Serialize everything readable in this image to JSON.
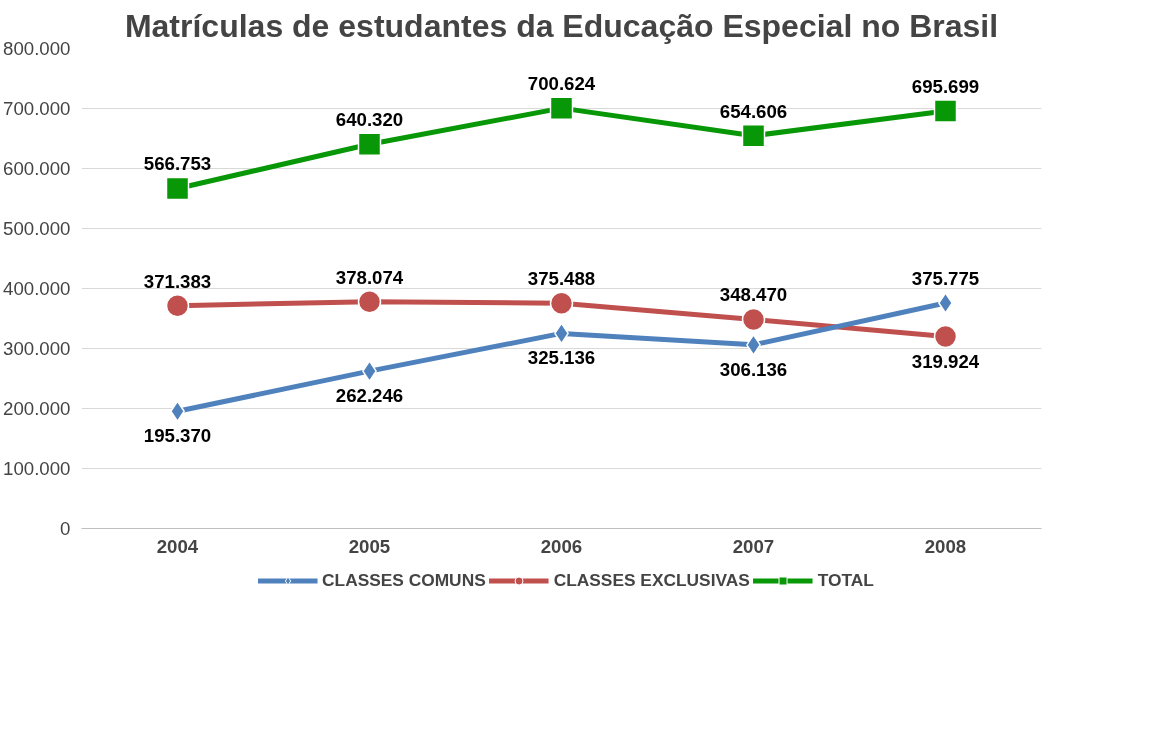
{
  "chart_data": {
    "type": "line",
    "title": "Matrículas de estudantes da Educação Especial no Brasil",
    "categories": [
      "2004",
      "2005",
      "2006",
      "2007",
      "2008"
    ],
    "series": [
      {
        "name": "CLASSES COMUNS",
        "color": "#4f81bd",
        "marker": "diamond",
        "values": [
          195370,
          262246,
          325136,
          306136,
          375775
        ],
        "value_labels": [
          "195.370",
          "262.246",
          "325.136",
          "306.136",
          "375.775"
        ]
      },
      {
        "name": "CLASSES EXCLUSIVAS",
        "color": "#c0504d",
        "marker": "circle",
        "values": [
          371383,
          378074,
          375488,
          348470,
          319924
        ],
        "value_labels": [
          "371.383",
          "378.074",
          "375.488",
          "348.470",
          "319.924"
        ]
      },
      {
        "name": "TOTAL",
        "color": "#079707",
        "marker": "square",
        "values": [
          566753,
          640320,
          700624,
          654606,
          695699
        ],
        "value_labels": [
          "566.753",
          "640.320",
          "700.624",
          "654.606",
          "695.699"
        ]
      }
    ],
    "ylim": [
      0,
      800000
    ],
    "yticks": [
      {
        "value": 0,
        "label": "0"
      },
      {
        "value": 100000,
        "label": "100.000"
      },
      {
        "value": 200000,
        "label": "200.000"
      },
      {
        "value": 300000,
        "label": "300.000"
      },
      {
        "value": 400000,
        "label": "400.000"
      },
      {
        "value": 500000,
        "label": "500.000"
      },
      {
        "value": 600000,
        "label": "600.000"
      },
      {
        "value": 700000,
        "label": "700.000"
      },
      {
        "value": 800000,
        "label": "800.000"
      }
    ],
    "grid": "y",
    "legend": "bottom",
    "line_style": "solid"
  }
}
